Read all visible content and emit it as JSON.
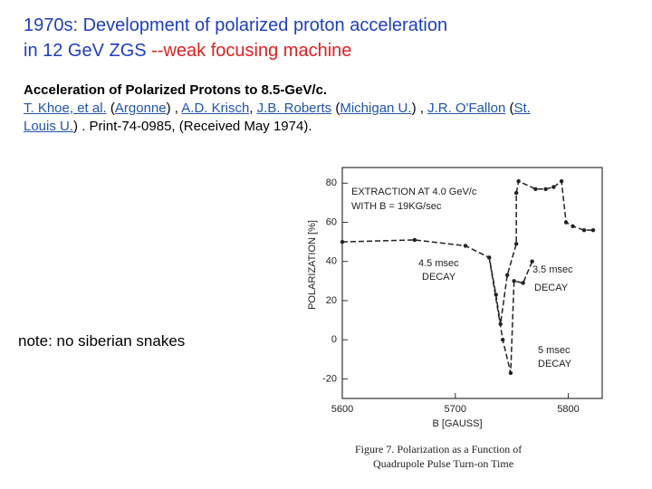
{
  "header": {
    "title_line1": "1970s: Development of polarized proton acceleration",
    "title_line2_a": "in 12 GeV ZGS ",
    "title_line2_b": "--weak focusing machine"
  },
  "reference": {
    "title": "Acceleration of Polarized Protons to 8.5-GeV/c.",
    "parts": [
      {
        "text": "T. Khoe, et al.",
        "link": true
      },
      {
        "text": " (",
        "link": false
      },
      {
        "text": "Argonne",
        "link": true
      },
      {
        "text": ") , ",
        "link": false
      },
      {
        "text": "A.D. Krisch",
        "link": true
      },
      {
        "text": ", ",
        "link": false
      },
      {
        "text": "J.B. Roberts",
        "link": true
      },
      {
        "text": " (",
        "link": false
      },
      {
        "text": "Michigan U.",
        "link": true
      },
      {
        "text": ") , ",
        "link": false
      },
      {
        "text": "J.R. O'Fallon",
        "link": true
      },
      {
        "text": " (",
        "link": false
      },
      {
        "text": "St. Louis U.",
        "link": true
      },
      {
        "text": ") . Print-74-0985, (Received May 1974).",
        "link": false
      }
    ]
  },
  "note": "note: no siberian snakes",
  "chart_data": {
    "type": "line",
    "ylabel": "POLARIZATION [%]",
    "xlabel": "B [GAUSS]",
    "xlim": [
      5600,
      5830
    ],
    "ylim": [
      -30,
      88
    ],
    "xticks": [
      5600,
      5700,
      5800
    ],
    "yticks": [
      -20,
      0,
      20,
      40,
      60,
      80
    ],
    "series": [
      {
        "color": "#222222",
        "x": [
          5600,
          5664,
          5709,
          5730,
          5736,
          5740,
          5746,
          5754,
          5754,
          5756,
          5771,
          5780,
          5787,
          5794,
          5798,
          5804,
          5814,
          5822
        ],
        "values": [
          50,
          51,
          48,
          42,
          23,
          8,
          33,
          49,
          75,
          81,
          77,
          77,
          78,
          81,
          60,
          58,
          56,
          56
        ]
      },
      {
        "color": "#222222",
        "x": [
          5730,
          5742,
          5749,
          5752,
          5760,
          5768
        ],
        "values": [
          42,
          0,
          -17,
          30,
          29,
          40
        ]
      }
    ],
    "annotations": [
      "EXTRACTION AT 4.0 GeV/c",
      "WITH B = 19KG/sec",
      "4.5 msec",
      "DECAY",
      "3.5 msec",
      "DECAY",
      "5 msec",
      "DECAY"
    ],
    "caption": [
      "Figure 7. Polarization as a Function of",
      "Quadrupole Pulse Turn-on Time"
    ]
  }
}
